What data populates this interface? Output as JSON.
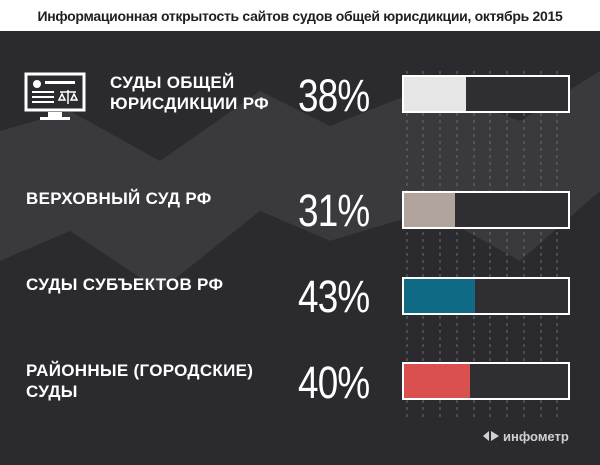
{
  "title": "Информационная открытость сайтов судов общей юрисдикции, октябрь 2015",
  "colors": {
    "background": "#2b2a2e",
    "row1": "#e6e6e6",
    "row2": "#b0a49c",
    "row3": "#0f6a86",
    "row4": "#d9504f"
  },
  "icon": "court-computer-icon",
  "brand": {
    "name": "инфометр",
    "icon": "infometr-logo-icon"
  },
  "chart_data": {
    "type": "bar",
    "title": "Информационная открытость сайтов судов общей юрисдикции, октябрь 2015",
    "categories": [
      "СУДЫ ОБЩЕЙ ЮРИСДИКЦИИ РФ",
      "ВЕРХОВНЫЙ СУД РФ",
      "СУДЫ СУБЪЕКТОВ РФ",
      "РАЙОННЫЕ (ГОРОДСКИЕ) СУДЫ"
    ],
    "values": [
      38,
      31,
      43,
      40
    ],
    "value_labels": [
      "38%",
      "31%",
      "43%",
      "40%"
    ],
    "ylim": [
      0,
      100
    ],
    "orientation": "horizontal"
  }
}
